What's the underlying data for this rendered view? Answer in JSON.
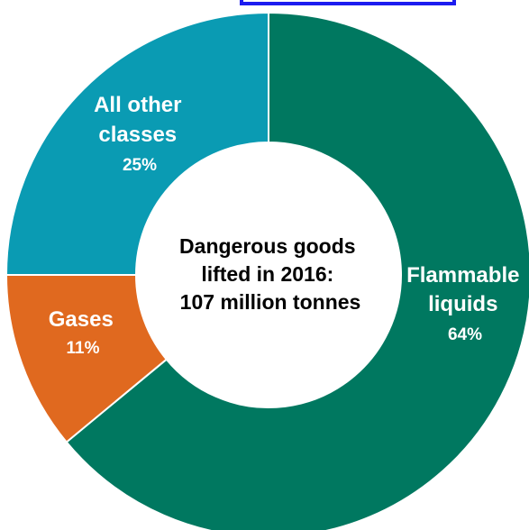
{
  "chart_data": {
    "type": "pie",
    "center_label": [
      "Dangerous goods",
      "lifted in 2016:",
      "107 million tonnes"
    ],
    "slices": [
      {
        "label": [
          "Flammable",
          "liquids"
        ],
        "value": 64,
        "value_label": "64%",
        "color": "#007860"
      },
      {
        "label": [
          "Gases"
        ],
        "value": 11,
        "value_label": "11%",
        "color": "#E0691F"
      },
      {
        "label": [
          "All other",
          "classes"
        ],
        "value": 25,
        "value_label": "25%",
        "color": "#0A9BB3"
      }
    ]
  },
  "colors": {
    "flammable_liquids": "#007860",
    "gases": "#E0691F",
    "all_other_classes": "#0A9BB3",
    "slice_border": "#ffffff"
  }
}
